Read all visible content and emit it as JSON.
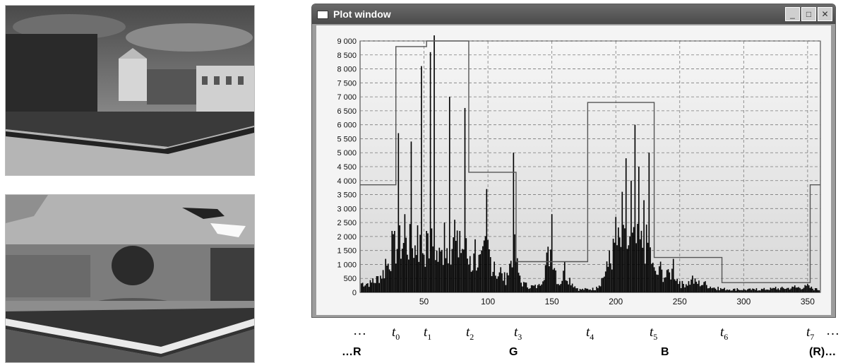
{
  "window": {
    "title": "Plot window",
    "buttons": {
      "minimize": "_",
      "maximize": "□",
      "close": "✕"
    }
  },
  "chart_data": {
    "type": "bar",
    "title": "",
    "xlabel": "",
    "ylabel": "",
    "xlim": [
      0,
      360
    ],
    "ylim": [
      0,
      9000
    ],
    "x_ticks": [
      50,
      100,
      150,
      200,
      250,
      300,
      350
    ],
    "y_ticks": [
      0,
      500,
      1000,
      1500,
      2000,
      2500,
      3000,
      3500,
      4000,
      4500,
      5000,
      5500,
      6000,
      6500,
      7000,
      7500,
      8000,
      8500,
      9000
    ],
    "y_tick_labels": [
      "0",
      "500",
      "1 000",
      "1 500",
      "2 000",
      "2 500",
      "3 000",
      "3 500",
      "4 000",
      "4 500",
      "5 000",
      "5 500",
      "6 000",
      "6 500",
      "7 000",
      "7 500",
      "8 000",
      "8 500",
      "9 000"
    ],
    "grid": true,
    "histogram_peaks": [
      {
        "x": 10,
        "y": 500
      },
      {
        "x": 20,
        "y": 1200
      },
      {
        "x": 25,
        "y": 2200
      },
      {
        "x": 30,
        "y": 5700
      },
      {
        "x": 35,
        "y": 2800
      },
      {
        "x": 40,
        "y": 5400
      },
      {
        "x": 45,
        "y": 2400
      },
      {
        "x": 48,
        "y": 8100
      },
      {
        "x": 52,
        "y": 2200
      },
      {
        "x": 55,
        "y": 8600
      },
      {
        "x": 58,
        "y": 9200
      },
      {
        "x": 62,
        "y": 1600
      },
      {
        "x": 66,
        "y": 2500
      },
      {
        "x": 70,
        "y": 7000
      },
      {
        "x": 74,
        "y": 2600
      },
      {
        "x": 78,
        "y": 2200
      },
      {
        "x": 82,
        "y": 6600
      },
      {
        "x": 86,
        "y": 1300
      },
      {
        "x": 90,
        "y": 1900
      },
      {
        "x": 95,
        "y": 1500
      },
      {
        "x": 99,
        "y": 3700
      },
      {
        "x": 105,
        "y": 1100
      },
      {
        "x": 110,
        "y": 900
      },
      {
        "x": 115,
        "y": 700
      },
      {
        "x": 120,
        "y": 5000
      },
      {
        "x": 125,
        "y": 600
      },
      {
        "x": 130,
        "y": 350
      },
      {
        "x": 140,
        "y": 300
      },
      {
        "x": 150,
        "y": 2800
      },
      {
        "x": 155,
        "y": 300
      },
      {
        "x": 160,
        "y": 1100
      },
      {
        "x": 170,
        "y": 150
      },
      {
        "x": 185,
        "y": 200
      },
      {
        "x": 195,
        "y": 1500
      },
      {
        "x": 200,
        "y": 2700
      },
      {
        "x": 205,
        "y": 3600
      },
      {
        "x": 208,
        "y": 4800
      },
      {
        "x": 212,
        "y": 4000
      },
      {
        "x": 215,
        "y": 6000
      },
      {
        "x": 218,
        "y": 4500
      },
      {
        "x": 222,
        "y": 3300
      },
      {
        "x": 226,
        "y": 5000
      },
      {
        "x": 230,
        "y": 900
      },
      {
        "x": 235,
        "y": 1100
      },
      {
        "x": 240,
        "y": 800
      },
      {
        "x": 245,
        "y": 1200
      },
      {
        "x": 250,
        "y": 400
      },
      {
        "x": 260,
        "y": 600
      },
      {
        "x": 270,
        "y": 400
      },
      {
        "x": 280,
        "y": 200
      },
      {
        "x": 295,
        "y": 150
      },
      {
        "x": 310,
        "y": 150
      },
      {
        "x": 325,
        "y": 200
      },
      {
        "x": 340,
        "y": 250
      },
      {
        "x": 350,
        "y": 300
      },
      {
        "x": 357,
        "y": 150
      }
    ],
    "step_line": [
      {
        "x": 0,
        "y": 3850
      },
      {
        "x": 28,
        "y": 3850
      },
      {
        "x": 28,
        "y": 8800
      },
      {
        "x": 52,
        "y": 8800
      },
      {
        "x": 52,
        "y": 9000
      },
      {
        "x": 85,
        "y": 9000
      },
      {
        "x": 85,
        "y": 4300
      },
      {
        "x": 122,
        "y": 4300
      },
      {
        "x": 122,
        "y": 1100
      },
      {
        "x": 178,
        "y": 1100
      },
      {
        "x": 178,
        "y": 6800
      },
      {
        "x": 230,
        "y": 6800
      },
      {
        "x": 230,
        "y": 1250
      },
      {
        "x": 283,
        "y": 1250
      },
      {
        "x": 283,
        "y": 350
      },
      {
        "x": 352,
        "y": 350
      },
      {
        "x": 352,
        "y": 3850
      },
      {
        "x": 360,
        "y": 3850
      }
    ]
  },
  "annotations": {
    "ellipsis_left": "…",
    "ellipsis_right": "…",
    "t_markers": [
      {
        "base": "t",
        "sub": "0"
      },
      {
        "base": "t",
        "sub": "1"
      },
      {
        "base": "t",
        "sub": "2"
      },
      {
        "base": "t",
        "sub": "3"
      },
      {
        "base": "t",
        "sub": "4"
      },
      {
        "base": "t",
        "sub": "5"
      },
      {
        "base": "t",
        "sub": "6"
      },
      {
        "base": "t",
        "sub": "7"
      }
    ],
    "channels": [
      "…R",
      "G",
      "B",
      "(R)…"
    ]
  }
}
